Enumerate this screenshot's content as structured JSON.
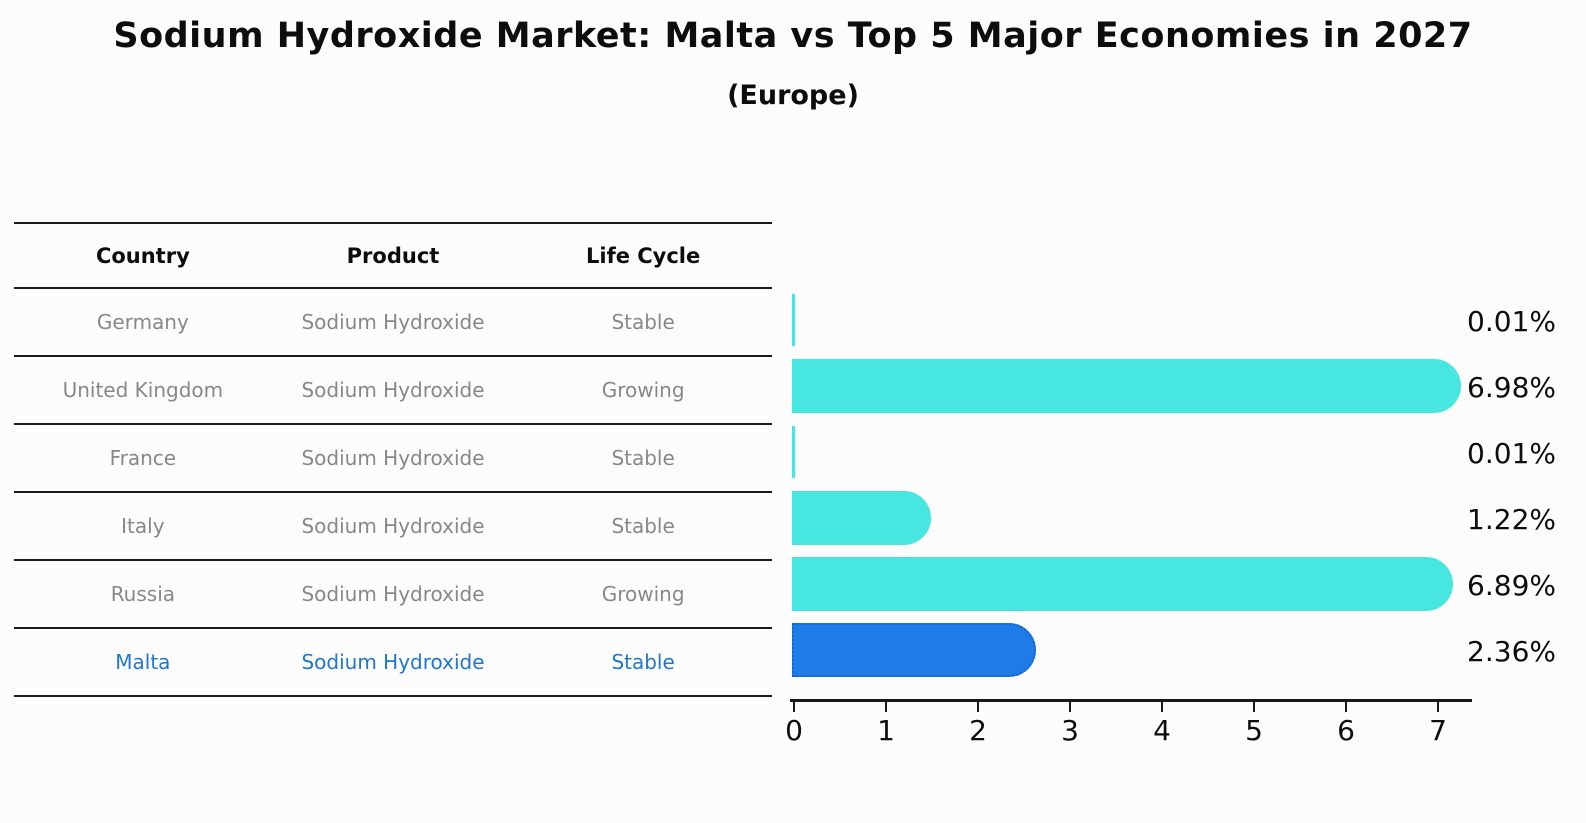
{
  "title": "Sodium Hydroxide Market: Malta vs Top 5 Major Economies in 2027",
  "subtitle": "(Europe)",
  "table": {
    "headers": [
      "Country",
      "Product",
      "Life Cycle"
    ],
    "rows": [
      {
        "country": "Germany",
        "product": "Sodium Hydroxide",
        "life_cycle": "Stable",
        "highlight": false
      },
      {
        "country": "United Kingdom",
        "product": "Sodium Hydroxide",
        "life_cycle": "Growing",
        "highlight": false
      },
      {
        "country": "France",
        "product": "Sodium Hydroxide",
        "life_cycle": "Stable",
        "highlight": false
      },
      {
        "country": "Italy",
        "product": "Sodium Hydroxide",
        "life_cycle": "Stable",
        "highlight": false
      },
      {
        "country": "Russia",
        "product": "Sodium Hydroxide",
        "life_cycle": "Growing",
        "highlight": false
      },
      {
        "country": "Malta",
        "product": "Sodium Hydroxide",
        "life_cycle": "Stable",
        "highlight": true
      }
    ]
  },
  "chart_data": {
    "type": "bar",
    "orientation": "horizontal",
    "title": "Sodium Hydroxide Market: Malta vs Top 5 Major Economies in 2027 (Europe)",
    "categories": [
      "Germany",
      "United Kingdom",
      "France",
      "Italy",
      "Russia",
      "Malta"
    ],
    "values": [
      0.01,
      6.98,
      0.01,
      1.22,
      6.89,
      2.36
    ],
    "value_labels": [
      "0.01%",
      "6.98%",
      "0.01%",
      "1.22%",
      "6.89%",
      "2.36%"
    ],
    "highlight_index": 5,
    "xlabel": "",
    "ylabel": "",
    "xlim": [
      0,
      7.35
    ],
    "x_ticks": [
      0,
      1,
      2,
      3,
      4,
      5,
      6,
      7
    ],
    "grid": false,
    "legend": false,
    "bar_color": "#47e6e1",
    "highlight_bar_color": "#1e7ce8",
    "highlight_border_color": "#1263cf"
  },
  "colors": {
    "background": "#fcfcfc",
    "muted_text": "#888888",
    "highlight_text": "#2277cc",
    "axis": "#1a1a1a"
  }
}
